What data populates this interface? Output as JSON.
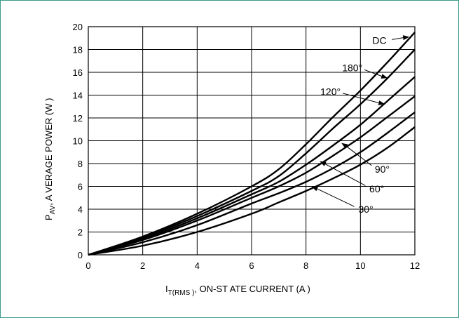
{
  "chart_data": {
    "type": "line",
    "xlabel": "I T(RMS) , ON-ST ATE CURRENT (A )",
    "xlabel_parts": {
      "main": "I",
      "sub": "T(RMS )",
      "rest": ", ON-ST ATE CURRENT (A )"
    },
    "ylabel": "PAV, A VERAGE POWER (W )",
    "ylabel_parts": {
      "main": "P",
      "sub": "AV",
      "rest": ", A VERAGE POWER (W )"
    },
    "xlim": [
      0,
      12
    ],
    "ylim": [
      0,
      20
    ],
    "grid": true,
    "x_ticks": [
      0,
      2,
      4,
      6,
      8,
      10,
      12
    ],
    "y_ticks": [
      0,
      2,
      4,
      6,
      8,
      10,
      12,
      14,
      16,
      18,
      20
    ],
    "series": [
      {
        "name": "DC",
        "x": [
          0,
          2,
          4,
          6,
          7,
          8,
          9,
          10,
          11,
          12
        ],
        "y": [
          0,
          1.6,
          3.6,
          6.0,
          7.5,
          9.7,
          12.1,
          14.4,
          16.9,
          19.5
        ]
      },
      {
        "name": "180°",
        "x": [
          0,
          2,
          4,
          6,
          7,
          8,
          9,
          10,
          11,
          12
        ],
        "y": [
          0,
          1.5,
          3.4,
          5.6,
          6.9,
          8.9,
          11.1,
          13.2,
          15.5,
          18.0
        ]
      },
      {
        "name": "120°",
        "x": [
          0,
          2,
          4,
          6,
          7,
          8,
          9,
          10,
          11,
          12
        ],
        "y": [
          0,
          1.4,
          3.2,
          5.3,
          6.4,
          7.9,
          9.6,
          11.4,
          13.5,
          15.6
        ]
      },
      {
        "name": "90°",
        "x": [
          0,
          2,
          4,
          6,
          7,
          8,
          9,
          10,
          11,
          12
        ],
        "y": [
          0,
          1.3,
          3.0,
          5.0,
          6.0,
          7.2,
          8.7,
          10.3,
          12.1,
          13.9
        ]
      },
      {
        "name": "60°",
        "x": [
          0,
          2,
          4,
          6,
          7,
          8,
          9,
          10,
          11,
          12
        ],
        "y": [
          0,
          1.1,
          2.6,
          4.5,
          5.4,
          6.4,
          7.6,
          9.0,
          10.7,
          12.5
        ]
      },
      {
        "name": "30°",
        "x": [
          0,
          2,
          4,
          6,
          7,
          8,
          9,
          10,
          11,
          12
        ],
        "y": [
          0,
          0.8,
          2.0,
          3.6,
          4.6,
          5.6,
          6.7,
          7.9,
          9.4,
          11.2
        ]
      }
    ],
    "annotations": [
      {
        "text": "DC",
        "series": "DC",
        "point_x": 11.8,
        "point_y": 19.1,
        "text_x": 10.7,
        "text_y": 18.8
      },
      {
        "text": "180°",
        "series": "180°",
        "point_x": 11.0,
        "point_y": 15.5,
        "text_x": 9.7,
        "text_y": 16.4
      },
      {
        "text": "120°",
        "series": "120°",
        "point_x": 10.9,
        "point_y": 13.2,
        "text_x": 8.9,
        "text_y": 14.3
      },
      {
        "text": "90°",
        "series": "90°",
        "point_x": 9.3,
        "point_y": 9.8,
        "text_x": 10.8,
        "text_y": 7.5
      },
      {
        "text": "60°",
        "series": "60°",
        "point_x": 8.5,
        "point_y": 8.2,
        "text_x": 10.6,
        "text_y": 5.8
      },
      {
        "text": "30°",
        "series": "30°",
        "point_x": 8.2,
        "point_y": 6.0,
        "text_x": 10.2,
        "text_y": 4.0
      }
    ]
  }
}
